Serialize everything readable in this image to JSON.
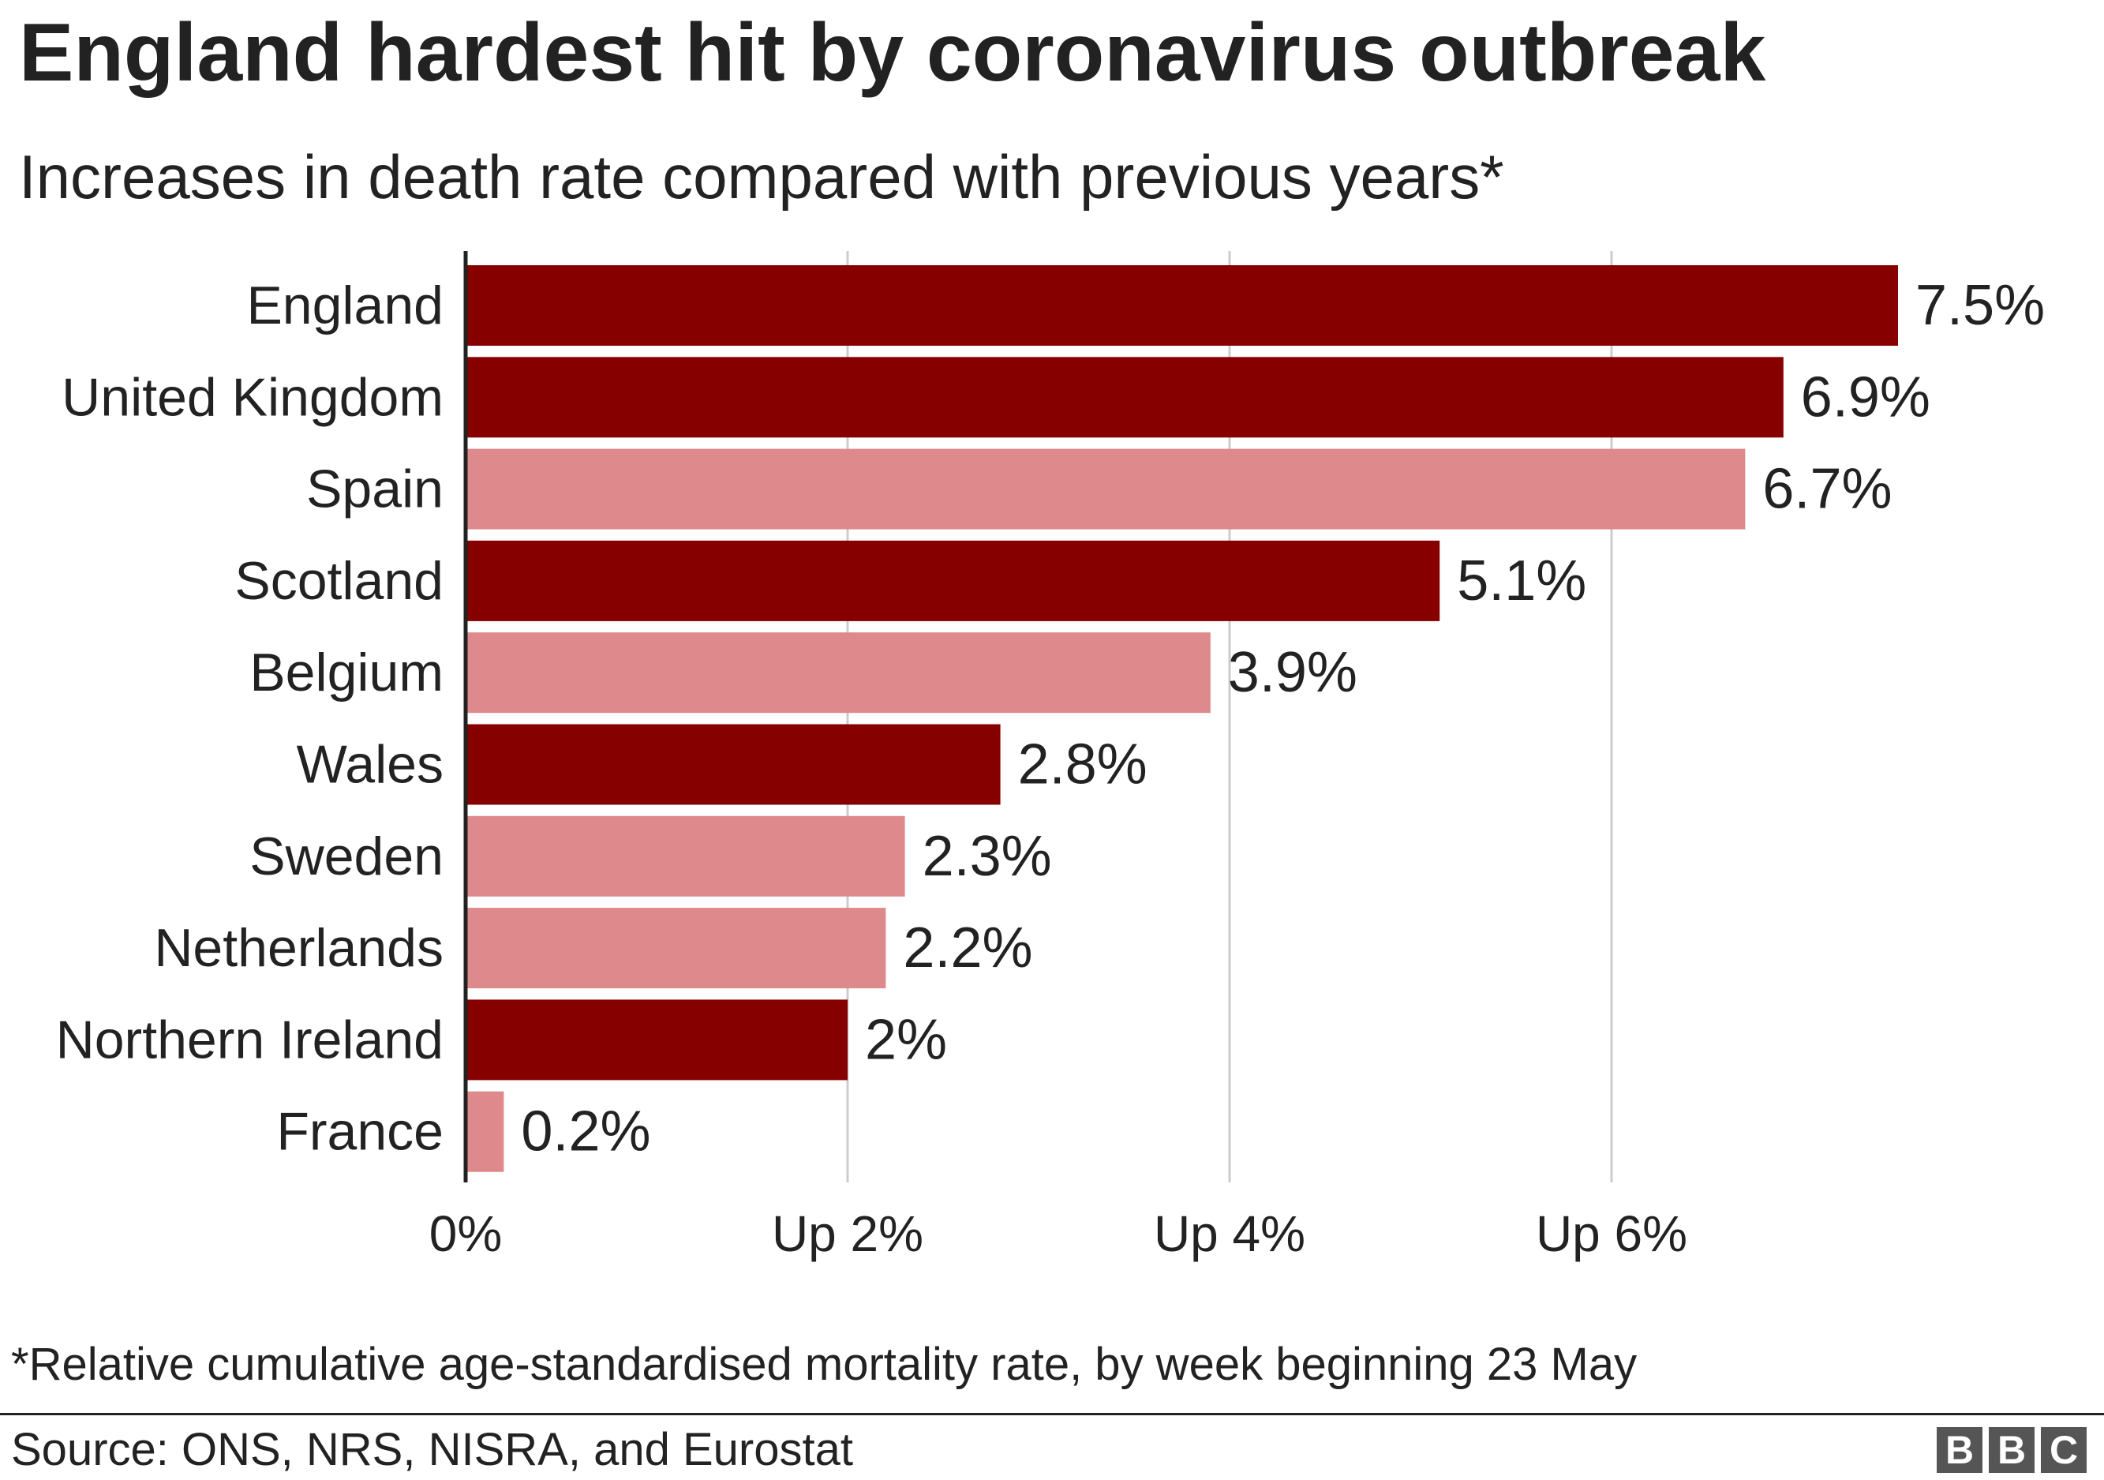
{
  "title": "England hardest hit by coronavirus outbreak",
  "subtitle": "Increases in death rate compared with previous years*",
  "footnote": "*Relative cumulative age-standardised mortality rate, by week beginning 23 May",
  "source": "Source: ONS, NRS, NISRA, and Eurostat",
  "logo": {
    "letters": [
      "B",
      "B",
      "C"
    ]
  },
  "colors": {
    "uk_nation": "#870000",
    "other_country": "#de898b",
    "axis": "#222222",
    "grid": "#cccccc",
    "text": "#222222",
    "logo_block": "#555555"
  },
  "chart_data": {
    "type": "bar",
    "orientation": "horizontal",
    "title": "England hardest hit by coronavirus outbreak",
    "subtitle": "Increases in death rate compared with previous years*",
    "categories": [
      "England",
      "United Kingdom",
      "Spain",
      "Scotland",
      "Belgium",
      "Wales",
      "Sweden",
      "Netherlands",
      "Northern Ireland",
      "France"
    ],
    "values": [
      7.5,
      6.9,
      6.7,
      5.1,
      3.9,
      2.8,
      2.3,
      2.2,
      2.0,
      0.2
    ],
    "value_labels": [
      "7.5%",
      "6.9%",
      "6.7%",
      "5.1%",
      "3.9%",
      "2.8%",
      "2.3%",
      "2.2%",
      "2%",
      "0.2%"
    ],
    "groups": [
      "uk",
      "uk",
      "other",
      "uk",
      "other",
      "uk",
      "other",
      "other",
      "uk",
      "other"
    ],
    "xlim": [
      0,
      7.5
    ],
    "xticks": [
      0,
      2,
      4,
      6
    ],
    "xtick_labels": [
      "0%",
      "Up 2%",
      "Up 4%",
      "Up 6%"
    ],
    "grid": true,
    "xlabel": "",
    "ylabel": ""
  }
}
